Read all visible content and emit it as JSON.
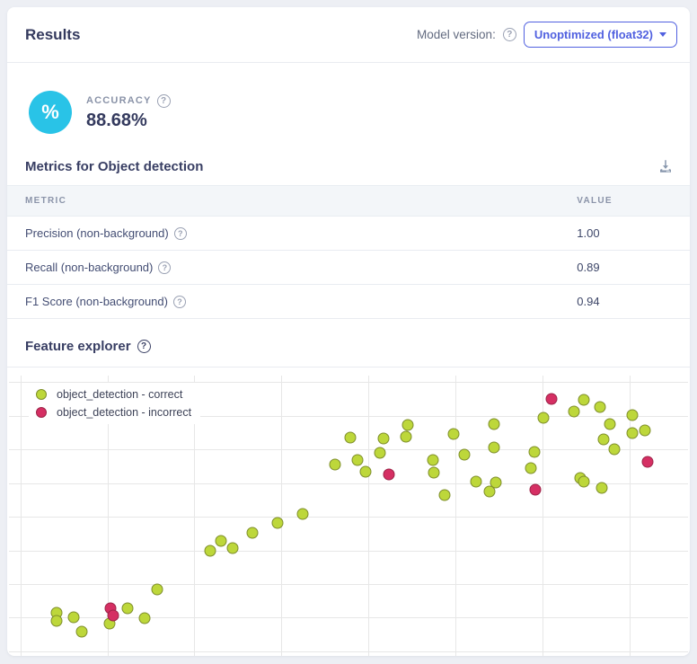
{
  "header": {
    "title": "Results",
    "model_version_label": "Model version:",
    "model_version_value": "Unoptimized (float32)"
  },
  "accuracy": {
    "label": "ACCURACY",
    "icon": "%",
    "value": "88.68%"
  },
  "metrics": {
    "heading": "Metrics for Object detection",
    "columns": [
      "METRIC",
      "VALUE"
    ],
    "rows": [
      {
        "label": "Precision (non-background)",
        "value": "1.00"
      },
      {
        "label": "Recall (non-background)",
        "value": "0.89"
      },
      {
        "label": "F1 Score (non-background)",
        "value": "0.94"
      }
    ]
  },
  "feature_explorer": {
    "heading": "Feature explorer"
  },
  "colors": {
    "accent": "#5161e0",
    "accuracy_icon_bg": "#29c3e7",
    "correct_fill": "#bdd73a",
    "correct_stroke": "#7e8e2b",
    "incorrect_fill": "#d52f63",
    "incorrect_stroke": "#9c2448",
    "gridline": "#e7e7e7"
  },
  "chart_data": {
    "type": "scatter",
    "title": "Feature explorer",
    "xlabel": "",
    "ylabel": "",
    "xlim": [
      0,
      100
    ],
    "ylim": [
      0,
      100
    ],
    "grid": true,
    "legend_position": "top-left",
    "x_gridlines_pct": [
      1.7,
      14.5,
      27.3,
      40.1,
      52.9,
      65.7,
      78.6,
      91.4
    ],
    "y_gridlines_pct": [
      2.2,
      14.0,
      25.8,
      37.6,
      49.4,
      61.2,
      72.9,
      84.7,
      96.5
    ],
    "series": [
      {
        "name": "object_detection - correct",
        "color": "#bdd73a",
        "stroke": "#7e8e2b",
        "points": [
          [
            48.0,
            68.9
          ],
          [
            50.3,
            78.3
          ],
          [
            51.3,
            70.4
          ],
          [
            52.5,
            66.4
          ],
          [
            54.6,
            73.0
          ],
          [
            55.1,
            78.0
          ],
          [
            58.4,
            78.6
          ],
          [
            58.7,
            82.7
          ],
          [
            62.4,
            70.4
          ],
          [
            62.5,
            66.0
          ],
          [
            64.2,
            58.2
          ],
          [
            65.5,
            79.6
          ],
          [
            67.0,
            72.3
          ],
          [
            68.8,
            62.9
          ],
          [
            70.8,
            59.4
          ],
          [
            71.4,
            83.0
          ],
          [
            71.4,
            74.8
          ],
          [
            71.7,
            62.6
          ],
          [
            76.8,
            67.6
          ],
          [
            77.4,
            73.3
          ],
          [
            78.7,
            85.2
          ],
          [
            83.2,
            87.4
          ],
          [
            84.1,
            64.2
          ],
          [
            84.7,
            62.9
          ],
          [
            84.6,
            91.5
          ],
          [
            87.1,
            89.0
          ],
          [
            87.3,
            60.7
          ],
          [
            87.5,
            77.7
          ],
          [
            88.5,
            83.0
          ],
          [
            89.2,
            74.2
          ],
          [
            91.8,
            86.2
          ],
          [
            91.8,
            79.9
          ],
          [
            93.6,
            80.8
          ],
          [
            7.0,
            17.0
          ],
          [
            7.0,
            14.2
          ],
          [
            9.5,
            15.4
          ],
          [
            10.7,
            10.4
          ],
          [
            14.8,
            13.2
          ],
          [
            17.4,
            18.6
          ],
          [
            20.0,
            15.1
          ],
          [
            21.8,
            25.2
          ],
          [
            29.6,
            38.7
          ],
          [
            31.2,
            42.1
          ],
          [
            33.0,
            39.6
          ],
          [
            35.8,
            45.0
          ],
          [
            39.6,
            48.4
          ],
          [
            43.2,
            51.6
          ]
        ]
      },
      {
        "name": "object_detection - incorrect",
        "color": "#d52f63",
        "stroke": "#9c2448",
        "points": [
          [
            55.9,
            65.4
          ],
          [
            79.9,
            91.8
          ],
          [
            77.5,
            60.1
          ],
          [
            94.0,
            69.8
          ],
          [
            14.9,
            18.6
          ],
          [
            15.3,
            16.0
          ]
        ]
      }
    ]
  }
}
